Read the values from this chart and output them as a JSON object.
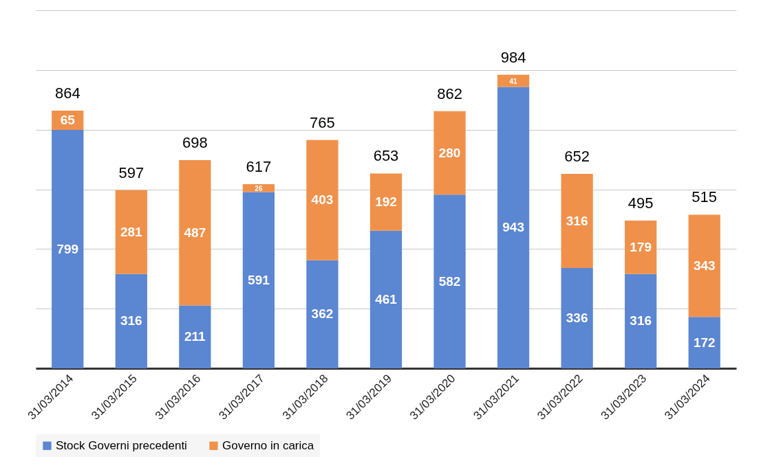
{
  "chart_data": {
    "type": "bar",
    "stacked": true,
    "categories": [
      "31/03/2014",
      "31/03/2015",
      "31/03/2016",
      "31/03/2017",
      "31/03/2018",
      "31/03/2019",
      "31/03/2020",
      "31/03/2021",
      "31/03/2022",
      "31/03/2023",
      "31/03/2024"
    ],
    "series": [
      {
        "name": "Stock Governi precedenti",
        "color": "#5b86d1",
        "values": [
          799,
          316,
          211,
          591,
          362,
          461,
          582,
          943,
          336,
          316,
          172
        ]
      },
      {
        "name": "Governo in carica",
        "color": "#f0914b",
        "values": [
          65,
          281,
          487,
          26,
          403,
          192,
          280,
          41,
          316,
          179,
          343
        ]
      }
    ],
    "totals": [
      "864",
      "597",
      "698",
      "617",
      "765",
      "653",
      "862",
      "984",
      "652",
      "495",
      "515"
    ],
    "data_labels": true,
    "ylim": [
      0,
      1200
    ],
    "yticks": [
      {
        "value": 0,
        "label": null
      },
      {
        "value": 200,
        "label": null
      },
      {
        "value": 400,
        "label": null
      },
      {
        "value": 600,
        "label": null
      },
      {
        "value": 800,
        "label": null
      },
      {
        "value": 1000,
        "label": null
      },
      {
        "value": 1200,
        "label": null
      }
    ],
    "tick_labels": "x",
    "grid": "y",
    "legend": "bottom"
  }
}
